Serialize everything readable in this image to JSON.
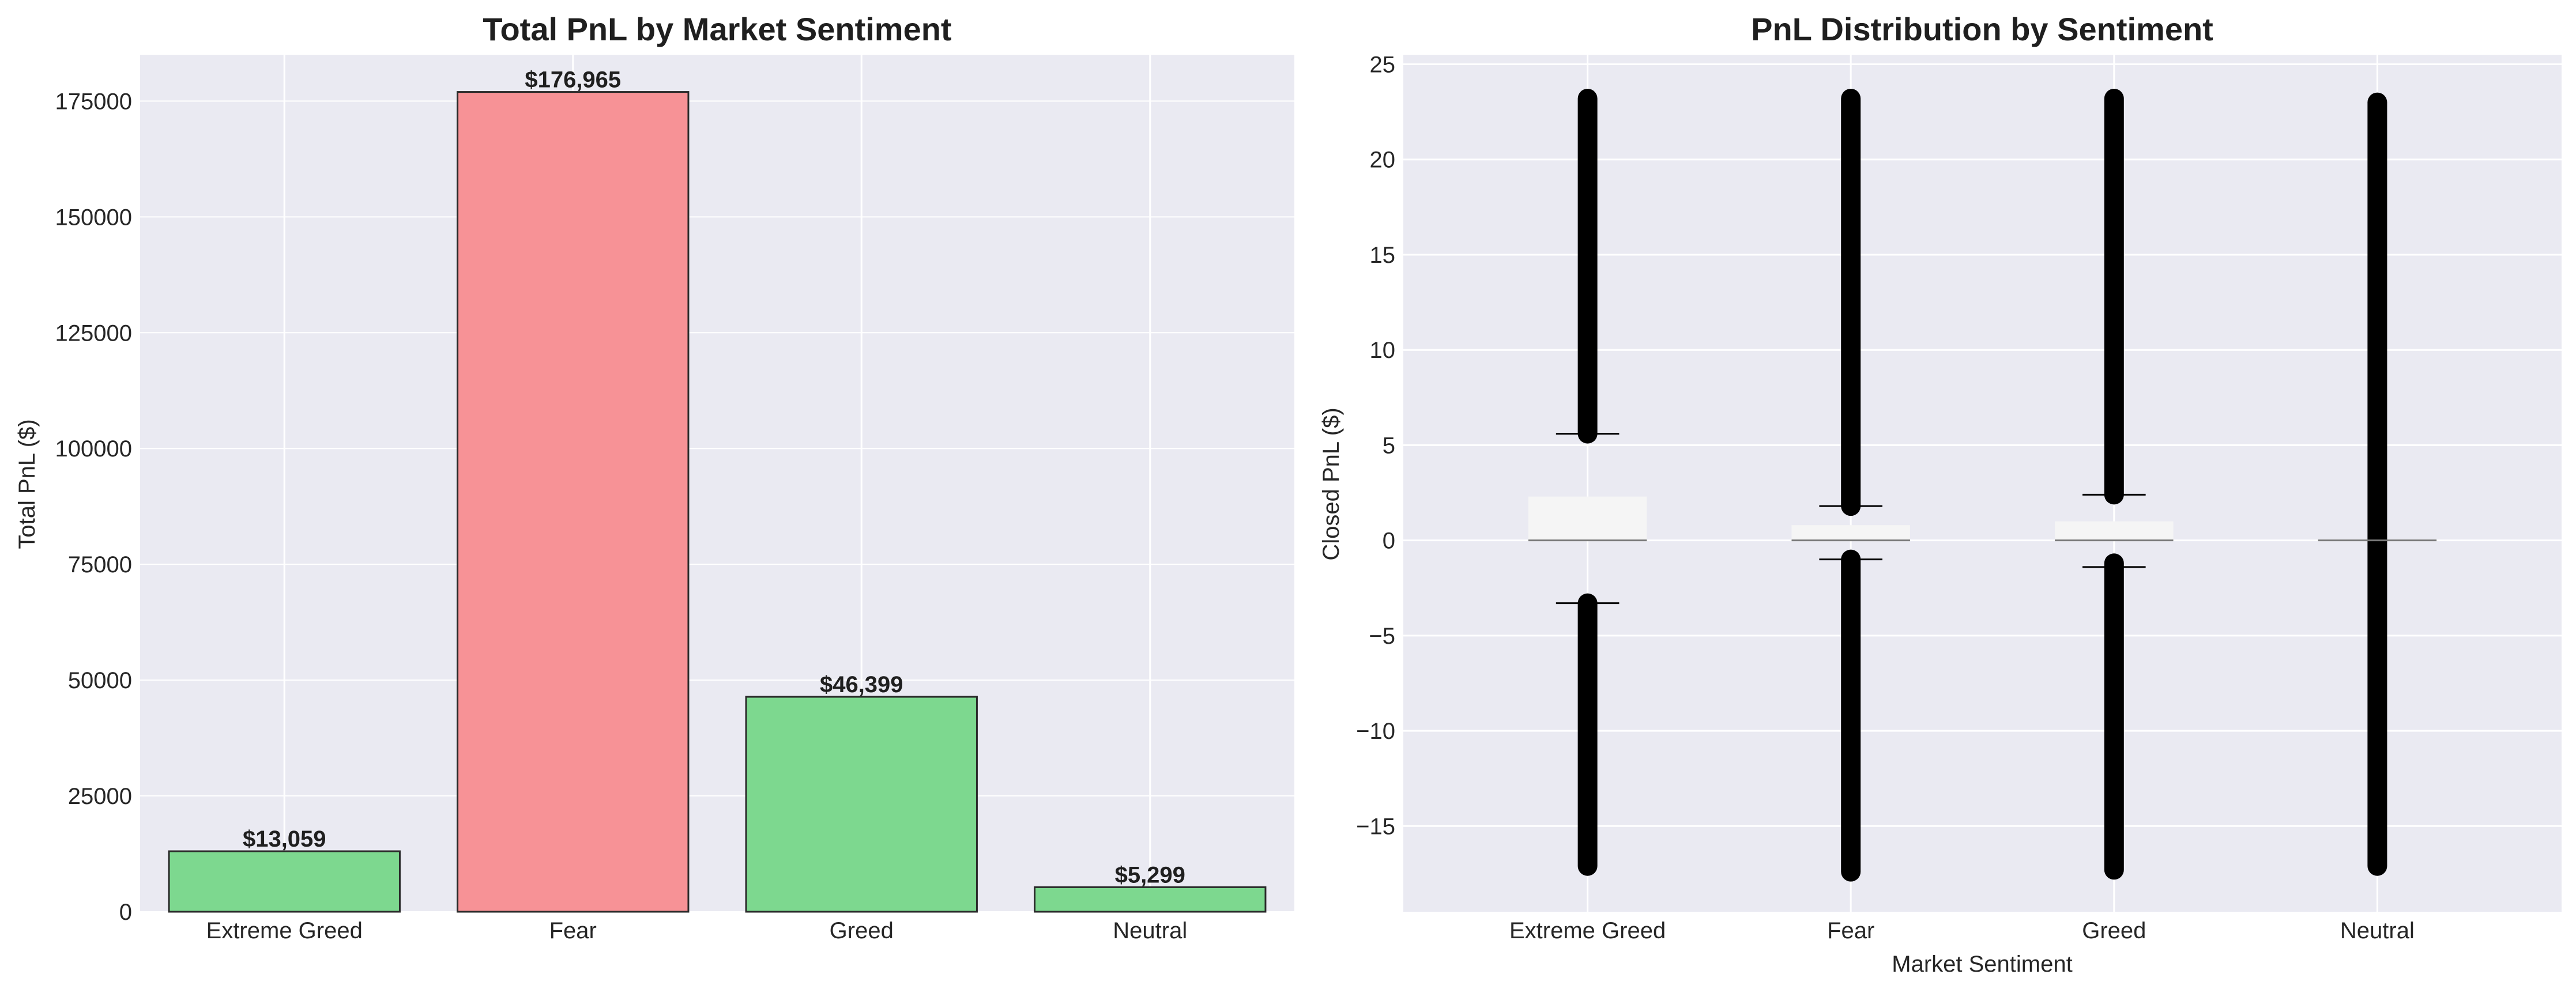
{
  "chart_data": [
    {
      "type": "bar",
      "title": "Total PnL by Market Sentiment",
      "xlabel": "",
      "ylabel": "Total PnL ($)",
      "categories": [
        "Extreme Greed",
        "Fear",
        "Greed",
        "Neutral"
      ],
      "values": [
        13059,
        176965,
        46399,
        5299
      ],
      "data_labels": [
        "$13,059",
        "$176,965",
        "$46,399",
        "$5,299"
      ],
      "bar_colors": [
        "#7dd88f",
        "#f79296",
        "#7dd88f",
        "#7dd88f"
      ],
      "ylim": [
        0,
        185000
      ],
      "yticks": [
        0,
        25000,
        50000,
        75000,
        100000,
        125000,
        150000,
        175000
      ],
      "ytick_labels": [
        "0",
        "25000",
        "50000",
        "75000",
        "100000",
        "125000",
        "150000",
        "175000"
      ],
      "grid": true
    },
    {
      "type": "box",
      "title": "PnL Distribution by Sentiment",
      "xlabel": "Market Sentiment",
      "ylabel": "Closed PnL ($)",
      "categories": [
        "Extreme Greed",
        "Fear",
        "Greed",
        "Neutral"
      ],
      "boxes": [
        {
          "q1": 0,
          "median": 0,
          "q3": 2.3,
          "whisker_low": -3.3,
          "whisker_high": 5.6,
          "outliers_high": [
            5.6,
            23.2
          ],
          "outliers_low": [
            -17.1,
            -3.3
          ]
        },
        {
          "q1": 0,
          "median": 0,
          "q3": 0.8,
          "whisker_low": -1.0,
          "whisker_high": 1.8,
          "outliers_high": [
            1.8,
            23.2
          ],
          "outliers_low": [
            -17.4,
            -1.0
          ]
        },
        {
          "q1": 0,
          "median": 0,
          "q3": 1.0,
          "whisker_low": -1.4,
          "whisker_high": 2.4,
          "outliers_high": [
            2.4,
            23.2
          ],
          "outliers_low": [
            -17.3,
            -1.2
          ]
        },
        {
          "q1": 0,
          "median": 0,
          "q3": 0,
          "whisker_low": 0,
          "whisker_high": 0,
          "outliers_high": [
            0,
            23.0
          ],
          "outliers_low": [
            -17.1,
            0
          ]
        }
      ],
      "ylim": [
        -19.5,
        25.5
      ],
      "yticks": [
        -15,
        -10,
        -5,
        0,
        5,
        10,
        15,
        20,
        25
      ],
      "ytick_labels": [
        "−15",
        "−10",
        "−5",
        "0",
        "5",
        "10",
        "15",
        "20",
        "25"
      ],
      "grid": true,
      "background": "#eaeaf2",
      "box_fill": "#f5f5f5"
    }
  ]
}
